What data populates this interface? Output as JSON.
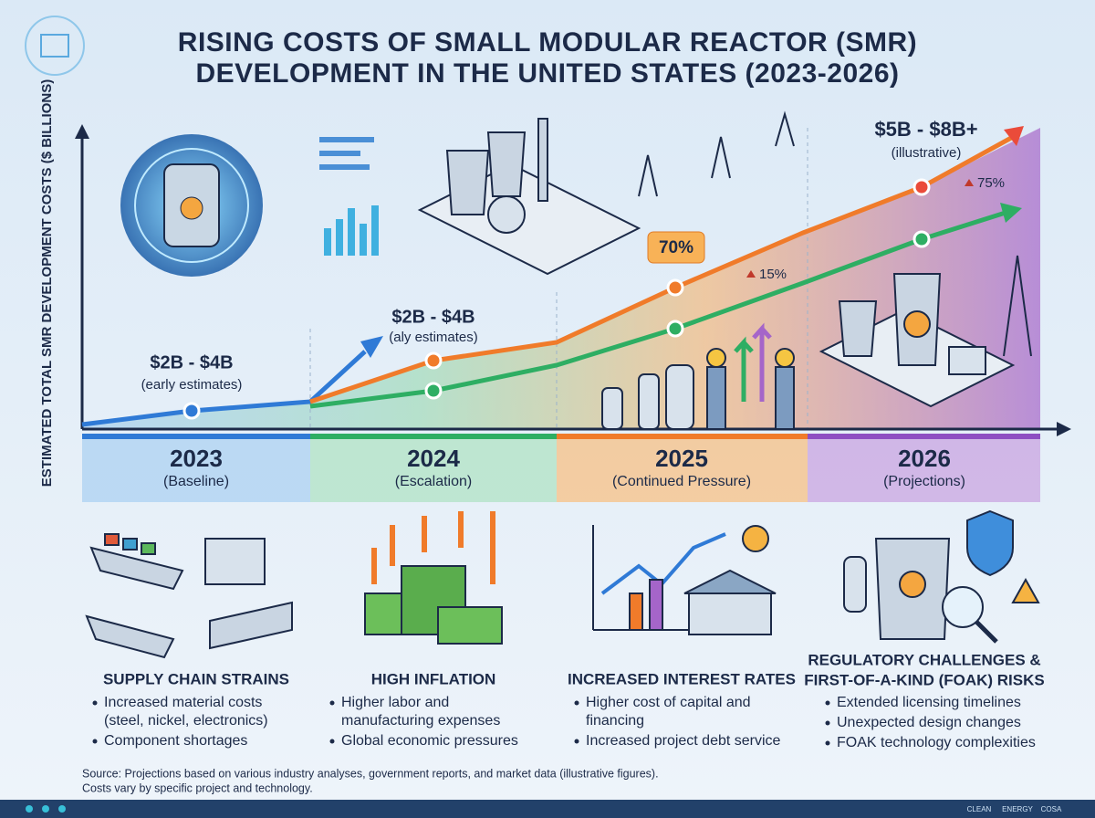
{
  "header": {
    "title": [
      "RISING COSTS OF SMALL MODULAR REACTOR (SMR)",
      "DEVELOPMENT IN THE UNITED STATES (2023-2026)"
    ]
  },
  "chart": {
    "y_axis_label": "ESTIMATED TOTAL SMR DEVELOPMENT COSTS ($ BILLIONS)",
    "annotations": [
      {
        "range": "$2B - $4B",
        "note": "(early estimates)"
      },
      {
        "range": "$2B - $4B",
        "note": "(aly estimates)"
      },
      {
        "range": "$5B - $8B+",
        "note": "(illustrative)"
      }
    ],
    "percent_labels": [
      "70%",
      "15%",
      "75%"
    ]
  },
  "columns": [
    {
      "year": "2023",
      "phase": "(Baseline)",
      "heading": [
        "SUPPLY CHAIN STRAINS"
      ],
      "bullets": [
        [
          "Increased material costs",
          "(steel, nickel, electronics)"
        ],
        [
          "Component shortages"
        ]
      ]
    },
    {
      "year": "2024",
      "phase": "(Escalation)",
      "heading": [
        "HIGH INFLATION"
      ],
      "bullets": [
        [
          "Higher labor and",
          "manufacturing expenses"
        ],
        [
          "Global economic pressures"
        ]
      ]
    },
    {
      "year": "2025",
      "phase": "(Continued Pressure)",
      "heading": [
        "INCREASED INTEREST RATES"
      ],
      "bullets": [
        [
          "Higher cost of capital and",
          "financing"
        ],
        [
          "Increased project debt service"
        ]
      ]
    },
    {
      "year": "2026",
      "phase": "(Projections)",
      "heading": [
        "REGULATORY CHALLENGES &",
        "FIRST-OF-A-KIND (FOAK) RISKS"
      ],
      "bullets": [
        [
          "Extended licensing timelines"
        ],
        [
          "Unexpected design changes"
        ],
        [
          "FOAK technology complexities"
        ]
      ]
    }
  ],
  "footer": {
    "source": [
      "Source: Projections based on various industry analyses, government reports, and market data (illustrative figures).",
      "Costs vary by specific project and technology."
    ],
    "brand": [
      "CLEAN",
      "ENERGY",
      "COSA"
    ]
  }
}
